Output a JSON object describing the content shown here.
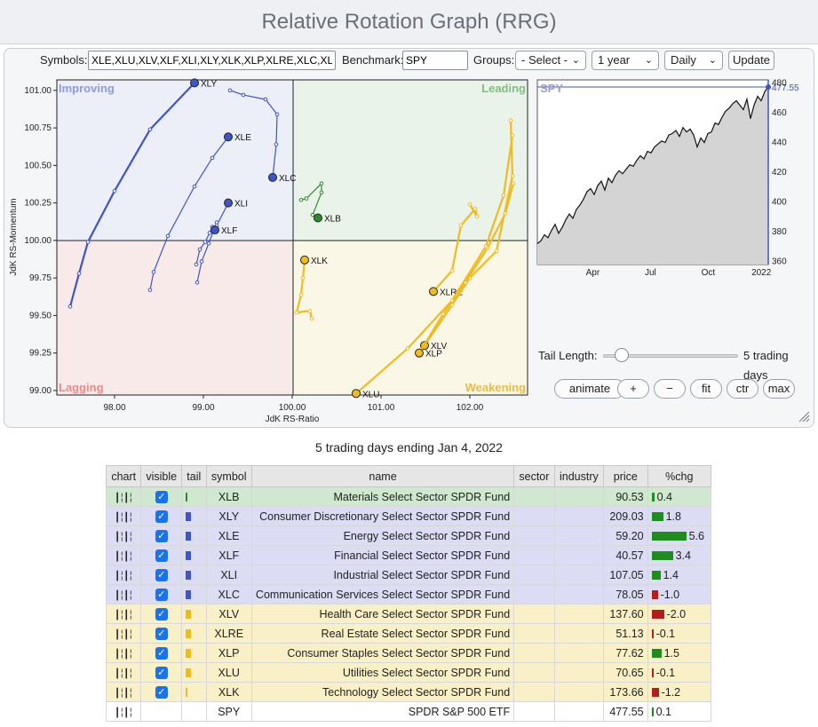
{
  "title": "Relative Rotation Graph (RRG)",
  "controls": {
    "symbols_label": "Symbols:",
    "symbols_value": "XLE,XLU,XLV,XLF,XLI,XLY,XLK,XLP,XLRE,XLC,XLB",
    "benchmark_label": "Benchmark:",
    "benchmark_value": "SPY",
    "groups_label": "Groups:",
    "groups_selected": "- Select -",
    "period_selected": "1 year",
    "frequency_selected": "Daily",
    "update_label": "Update"
  },
  "rrg": {
    "quadrants": {
      "improving": "Improving",
      "leading": "Leading",
      "lagging": "Lagging",
      "weakening": "Weakening"
    },
    "xlabel": "JdK RS-Ratio",
    "ylabel": "JdK RS-Momentum",
    "x_ticks": [
      "98.00",
      "99.00",
      "100.00",
      "101.00",
      "102.00"
    ],
    "y_ticks": [
      "101.00",
      "100.75",
      "100.50",
      "100.25",
      "100.00",
      "99.75",
      "99.50",
      "99.25",
      "99.00"
    ],
    "colors": {
      "improving": "#3d55c8",
      "leading": "#2e8b2e",
      "weakening": "#f0bb22",
      "improving_bg": "#eceef8",
      "leading_bg": "#eaf3ea",
      "lagging_bg": "#f9eaea",
      "weakening_bg": "#fbf7e6"
    }
  },
  "chart_data": {
    "type": "scatter",
    "xlabel": "JdK RS-Ratio",
    "ylabel": "JdK RS-Momentum",
    "xlim": [
      97.35,
      102.65
    ],
    "ylim": [
      98.97,
      101.07
    ],
    "series": [
      {
        "name": "XLY",
        "color": "#3d55c8",
        "x": [
          97.5,
          97.6,
          97.7,
          98.0,
          98.4,
          98.9
        ],
        "y": [
          99.56,
          99.78,
          99.99,
          100.33,
          100.74,
          101.05
        ]
      },
      {
        "name": "XLE",
        "color": "#3d55c8",
        "x": [
          98.4,
          98.44,
          98.6,
          98.9,
          99.1,
          99.28
        ],
        "y": [
          99.67,
          99.79,
          100.03,
          100.36,
          100.55,
          100.69
        ]
      },
      {
        "name": "XLC",
        "color": "#3d55c8",
        "x": [
          99.3,
          99.45,
          99.7,
          99.83,
          99.82,
          99.78
        ],
        "y": [
          101.0,
          100.97,
          100.94,
          100.84,
          100.64,
          100.42
        ]
      },
      {
        "name": "XLI",
        "color": "#3d55c8",
        "x": [
          98.93,
          98.98,
          99.06,
          99.15,
          99.15,
          99.28
        ],
        "y": [
          99.72,
          99.86,
          99.98,
          100.12,
          100.1,
          100.25
        ]
      },
      {
        "name": "XLF",
        "color": "#3d55c8",
        "x": [
          98.92,
          98.96,
          99.02,
          99.07,
          99.1,
          99.13
        ],
        "y": [
          99.84,
          99.94,
          99.99,
          100.05,
          100.09,
          100.07
        ]
      },
      {
        "name": "XLB",
        "color": "#2e8b2e",
        "x": [
          100.1,
          100.16,
          100.33,
          100.33,
          100.23,
          100.29
        ],
        "y": [
          100.27,
          100.28,
          100.38,
          100.32,
          100.17,
          100.15
        ]
      },
      {
        "name": "XLK",
        "color": "#f0bb22",
        "x": [
          100.22,
          100.2,
          100.05,
          100.1,
          100.12,
          100.14
        ],
        "y": [
          99.48,
          99.53,
          99.52,
          99.64,
          99.75,
          99.87
        ]
      },
      {
        "name": "XLRE",
        "color": "#f0bb22",
        "x": [
          102.0,
          102.08,
          102.06,
          101.9,
          101.8,
          101.59
        ],
        "y": [
          100.24,
          100.16,
          100.21,
          100.1,
          99.8,
          99.66
        ]
      },
      {
        "name": "XLV",
        "color": "#f0bb22",
        "x": [
          102.46,
          102.48,
          102.3,
          102.0,
          101.8,
          101.49
        ],
        "y": [
          100.8,
          100.43,
          99.93,
          99.75,
          99.57,
          99.3
        ]
      },
      {
        "name": "XLP",
        "color": "#f0bb22",
        "x": [
          102.49,
          102.4,
          102.2,
          101.95,
          101.7,
          101.43
        ],
        "y": [
          100.38,
          100.18,
          99.95,
          99.72,
          99.51,
          99.25
        ]
      },
      {
        "name": "XLU",
        "color": "#f0bb22",
        "x": [
          102.48,
          102.38,
          102.18,
          101.8,
          101.3,
          100.72
        ],
        "y": [
          100.7,
          100.3,
          99.96,
          99.6,
          99.28,
          98.98
        ]
      }
    ]
  },
  "spy_chart": {
    "label": "SPY",
    "last_value_label": "477.55",
    "y_ticks": [
      "480",
      "460",
      "440",
      "420",
      "400",
      "380",
      "360"
    ],
    "x_ticks": [
      "Apr",
      "Jul",
      "Oct",
      "2022"
    ],
    "ylim": [
      358,
      482
    ],
    "series": [
      372,
      374,
      378,
      376,
      381,
      385,
      379,
      383,
      388,
      392,
      389,
      395,
      398,
      402,
      407,
      409,
      405,
      411,
      414,
      408,
      416,
      413,
      418,
      421,
      419,
      422,
      425,
      424,
      428,
      431,
      429,
      434,
      433,
      437,
      439,
      441,
      440,
      445,
      446,
      448,
      444,
      450,
      447,
      449,
      445,
      437,
      443,
      440,
      446,
      447,
      453,
      452,
      457,
      461,
      463,
      466,
      468,
      465,
      462,
      469,
      456,
      465,
      471,
      468,
      474,
      477.55
    ]
  },
  "playback": {
    "tail_label": "Tail Length:",
    "tail_value_label": "5 trading days",
    "tail_fraction": 0.1,
    "buttons": [
      "animate",
      "+",
      "−",
      "fit",
      "ctr",
      "max"
    ]
  },
  "summary": {
    "caption": "5 trading days ending Jan 4, 2022"
  },
  "table": {
    "headers": [
      "chart",
      "visible",
      "tail",
      "symbol",
      "name",
      "sector",
      "industry",
      "price",
      "%chg"
    ],
    "rows": [
      {
        "symbol": "XLB",
        "name": "Materials Select Sector SPDR Fund",
        "price": "90.53",
        "chg": "0.4",
        "chg_value": 0.4,
        "quadrant": "leading",
        "tail_color": "#2e8b2e",
        "visible": true
      },
      {
        "symbol": "XLY",
        "name": "Consumer Discretionary Select Sector SPDR Fund",
        "price": "209.03",
        "chg": "1.8",
        "chg_value": 1.8,
        "quadrant": "improving",
        "tail_color": "#3d55c8",
        "visible": true
      },
      {
        "symbol": "XLE",
        "name": "Energy Select Sector SPDR Fund",
        "price": "59.20",
        "chg": "5.6",
        "chg_value": 5.6,
        "quadrant": "improving",
        "tail_color": "#3d55c8",
        "visible": true
      },
      {
        "symbol": "XLF",
        "name": "Financial Select Sector SPDR Fund",
        "price": "40.57",
        "chg": "3.4",
        "chg_value": 3.4,
        "quadrant": "improving",
        "tail_color": "#3d55c8",
        "visible": true
      },
      {
        "symbol": "XLI",
        "name": "Industrial Select Sector SPDR Fund",
        "price": "107.05",
        "chg": "1.4",
        "chg_value": 1.4,
        "quadrant": "improving",
        "tail_color": "#3d55c8",
        "visible": true
      },
      {
        "symbol": "XLC",
        "name": "Communication Services Select Sector SPDR Fund",
        "price": "78.05",
        "chg": "-1.0",
        "chg_value": -1.0,
        "quadrant": "improving",
        "tail_color": "#3d55c8",
        "visible": true
      },
      {
        "symbol": "XLV",
        "name": "Health Care Select Sector SPDR Fund",
        "price": "137.60",
        "chg": "-2.0",
        "chg_value": -2.0,
        "quadrant": "weakening",
        "tail_color": "#f0bb22",
        "visible": true
      },
      {
        "symbol": "XLRE",
        "name": "Real Estate Select Sector SPDR Fund",
        "price": "51.13",
        "chg": "-0.1",
        "chg_value": -0.1,
        "quadrant": "weakening",
        "tail_color": "#f0bb22",
        "visible": true
      },
      {
        "symbol": "XLP",
        "name": "Consumer Staples Select Sector SPDR Fund",
        "price": "77.62",
        "chg": "1.5",
        "chg_value": 1.5,
        "quadrant": "weakening",
        "tail_color": "#f0bb22",
        "visible": true
      },
      {
        "symbol": "XLU",
        "name": "Utilities Select Sector SPDR Fund",
        "price": "70.65",
        "chg": "-0.1",
        "chg_value": -0.1,
        "quadrant": "weakening",
        "tail_color": "#f0bb22",
        "visible": true
      },
      {
        "symbol": "XLK",
        "name": "Technology Select Sector SPDR Fund",
        "price": "173.66",
        "chg": "-1.2",
        "chg_value": -1.2,
        "quadrant": "weakening",
        "tail_color": "#f0bb22",
        "visible": true
      },
      {
        "symbol": "SPY",
        "name": "SPDR S&P 500 ETF",
        "price": "477.55",
        "chg": "0.1",
        "chg_value": 0.1,
        "quadrant": "benchmark",
        "tail_color": "",
        "visible": false
      }
    ]
  }
}
